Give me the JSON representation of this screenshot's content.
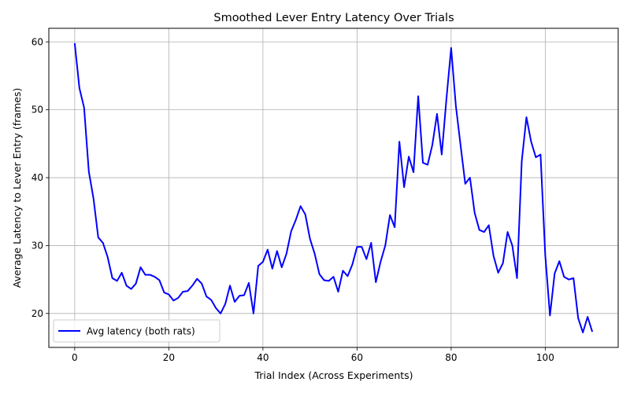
{
  "chart_data": {
    "type": "line",
    "title": "Smoothed Lever Entry Latency Over Trials",
    "xlabel": "Trial Index (Across Experiments)",
    "ylabel": "Average Latency to Lever Entry (frames)",
    "xlim": [
      -5.5,
      115.5
    ],
    "ylim": [
      15,
      62
    ],
    "xticks": [
      0,
      20,
      40,
      60,
      80,
      100
    ],
    "yticks": [
      20,
      30,
      40,
      50,
      60
    ],
    "grid": true,
    "legend_position": "lower-left",
    "series": [
      {
        "name": "Avg latency (both rats)",
        "color": "#0000ff",
        "x": [
          0,
          1,
          2,
          3,
          4,
          5,
          6,
          7,
          8,
          9,
          10,
          11,
          12,
          13,
          14,
          15,
          16,
          17,
          18,
          19,
          20,
          21,
          22,
          23,
          24,
          25,
          26,
          27,
          28,
          29,
          30,
          31,
          32,
          33,
          34,
          35,
          36,
          37,
          38,
          39,
          40,
          41,
          42,
          43,
          44,
          45,
          46,
          47,
          48,
          49,
          50,
          51,
          52,
          53,
          54,
          55,
          56,
          57,
          58,
          59,
          60,
          61,
          62,
          63,
          64,
          65,
          66,
          67,
          68,
          69,
          70,
          71,
          72,
          73,
          74,
          75,
          76,
          77,
          78,
          79,
          80,
          81,
          82,
          83,
          84,
          85,
          86,
          87,
          88,
          89,
          90,
          91,
          92,
          93,
          94,
          95,
          96,
          97,
          98,
          99,
          100,
          101,
          102,
          103,
          104,
          105,
          106,
          107,
          108,
          109,
          110
        ],
        "y": [
          59.8,
          53.2,
          50.3,
          40.9,
          36.9,
          31.2,
          30.4,
          28.3,
          25.2,
          24.8,
          26.0,
          24.1,
          23.6,
          24.4,
          26.8,
          25.7,
          25.7,
          25.4,
          24.9,
          23.1,
          22.8,
          21.9,
          22.3,
          23.2,
          23.3,
          24.1,
          25.1,
          24.4,
          22.5,
          22.0,
          20.8,
          20.0,
          21.4,
          24.1,
          21.7,
          22.6,
          22.7,
          24.5,
          20.0,
          27.0,
          27.6,
          29.4,
          26.6,
          29.2,
          26.8,
          28.8,
          32.1,
          33.8,
          35.8,
          34.6,
          31.0,
          28.8,
          25.8,
          24.9,
          24.8,
          25.4,
          23.2,
          26.3,
          25.5,
          27.2,
          29.8,
          29.8,
          28.0,
          30.4,
          24.6,
          27.6,
          30.0,
          34.5,
          32.7,
          45.3,
          38.6,
          43.1,
          40.8,
          52.0,
          42.2,
          41.9,
          44.8,
          49.4,
          43.4,
          51.6,
          59.1,
          50.6,
          44.8,
          39.1,
          40.0,
          34.8,
          32.3,
          32.0,
          33.0,
          28.5,
          26.0,
          27.4,
          32.0,
          30.0,
          25.2,
          42.4,
          48.9,
          45.3,
          43.0,
          43.4,
          28.6,
          19.7,
          25.9,
          27.7,
          25.4,
          25.0,
          25.2,
          19.3,
          17.2,
          19.5,
          17.3
        ]
      }
    ]
  }
}
